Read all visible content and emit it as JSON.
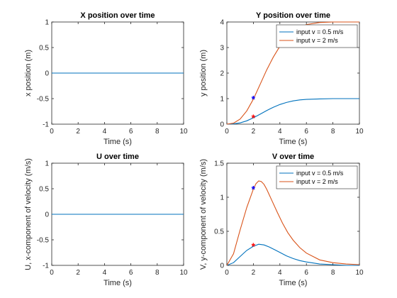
{
  "colors": {
    "series_blue": "#0072bd",
    "series_orange": "#d95319",
    "marker_blue": "#0000ff",
    "marker_red": "#ff0000",
    "axis": "#262626",
    "grid": "#dfdfdf"
  },
  "chart_data": [
    {
      "type": "line",
      "title": "X position over time",
      "xlabel": "Time (s)",
      "ylabel": "x position (m)",
      "xlim": [
        0,
        10
      ],
      "ylim": [
        -1,
        1
      ],
      "xticks": [
        "0",
        "2",
        "4",
        "6",
        "8",
        "10"
      ],
      "yticks": [
        "-1",
        "-0.5",
        "0",
        "0.5",
        "1"
      ],
      "xtick_values": [
        0,
        2,
        4,
        6,
        8,
        10
      ],
      "ytick_values": [
        -1,
        -0.5,
        0,
        0.5,
        1
      ],
      "grid": false,
      "series": [
        {
          "color": "#0072bd",
          "x": [
            0,
            10
          ],
          "y": [
            0,
            0
          ]
        }
      ]
    },
    {
      "type": "line",
      "title": "Y position over time",
      "xlabel": "Time (s)",
      "ylabel": "y position (m)",
      "xlim": [
        0,
        10
      ],
      "ylim": [
        0,
        4
      ],
      "xticks": [
        "0",
        "2",
        "4",
        "6",
        "8",
        "10"
      ],
      "yticks": [
        "0",
        "1",
        "2",
        "3",
        "4"
      ],
      "xtick_values": [
        0,
        2,
        4,
        6,
        8,
        10
      ],
      "ytick_values": [
        0,
        1,
        2,
        3,
        4
      ],
      "grid": false,
      "legend_position": "top-right",
      "series": [
        {
          "name": "input v = 0.5 m/s",
          "color": "#0072bd",
          "x": [
            0,
            0.5,
            1,
            1.5,
            2,
            2.5,
            3,
            3.5,
            4,
            4.5,
            5,
            5.5,
            6,
            7,
            8,
            9,
            10
          ],
          "y": [
            0,
            0.01,
            0.05,
            0.13,
            0.25,
            0.39,
            0.53,
            0.66,
            0.77,
            0.85,
            0.91,
            0.95,
            0.97,
            0.99,
            1.0,
            1.0,
            1.0
          ]
        },
        {
          "name": "input v = 2 m/s",
          "color": "#d95319",
          "x": [
            0,
            0.5,
            1,
            1.5,
            2,
            2.5,
            3,
            3.5,
            4,
            4.5,
            5,
            5.5,
            6,
            7,
            8,
            9,
            10
          ],
          "y": [
            0,
            0.04,
            0.2,
            0.52,
            0.98,
            1.55,
            2.12,
            2.62,
            3.05,
            3.4,
            3.64,
            3.8,
            3.9,
            3.98,
            4.0,
            4.0,
            4.0
          ]
        }
      ],
      "markers": [
        {
          "symbol": "*",
          "color": "#0000ff",
          "x": 2,
          "y": 0.98
        },
        {
          "symbol": "*",
          "color": "#ff0000",
          "x": 2,
          "y": 0.25
        }
      ]
    },
    {
      "type": "line",
      "title": "U over time",
      "xlabel": "Time (s)",
      "ylabel": "U, x-component of velocity (m/s)",
      "xlim": [
        0,
        10
      ],
      "ylim": [
        -1,
        1
      ],
      "xticks": [
        "0",
        "2",
        "4",
        "6",
        "8",
        "10"
      ],
      "yticks": [
        "-1",
        "-0.5",
        "0",
        "0.5",
        "1"
      ],
      "xtick_values": [
        0,
        2,
        4,
        6,
        8,
        10
      ],
      "ytick_values": [
        -1,
        -0.5,
        0,
        0.5,
        1
      ],
      "grid": false,
      "series": [
        {
          "color": "#0072bd",
          "x": [
            0,
            10
          ],
          "y": [
            0,
            0
          ]
        }
      ]
    },
    {
      "type": "line",
      "title": "V over time",
      "xlabel": "Time (s)",
      "ylabel": "V, y-component of velocity (m/s)",
      "xlim": [
        0,
        10
      ],
      "ylim": [
        0,
        1.5
      ],
      "xticks": [
        "0",
        "2",
        "4",
        "6",
        "8",
        "10"
      ],
      "yticks": [
        "0",
        "0.5",
        "1",
        "1.5"
      ],
      "xtick_values": [
        0,
        2,
        4,
        6,
        8,
        10
      ],
      "ytick_values": [
        0,
        0.5,
        1,
        1.5
      ],
      "grid": false,
      "legend_position": "top-right",
      "series": [
        {
          "name": "input v = 0.5 m/s",
          "color": "#0072bd",
          "x": [
            0,
            0.5,
            1,
            1.5,
            2,
            2.4,
            2.8,
            3.2,
            3.6,
            4,
            4.5,
            5,
            5.5,
            6,
            7,
            8,
            9,
            10
          ],
          "y": [
            0,
            0.04,
            0.13,
            0.22,
            0.28,
            0.31,
            0.3,
            0.27,
            0.23,
            0.19,
            0.14,
            0.1,
            0.07,
            0.05,
            0.02,
            0.01,
            0.0,
            0.0
          ]
        },
        {
          "name": "input v = 2 m/s",
          "color": "#d95319",
          "x": [
            0,
            0.5,
            1,
            1.5,
            2,
            2.2,
            2.4,
            2.6,
            2.8,
            3,
            3.4,
            3.8,
            4.2,
            4.6,
            5,
            5.5,
            6,
            7,
            8,
            9,
            10
          ],
          "y": [
            0,
            0.17,
            0.52,
            0.85,
            1.12,
            1.2,
            1.24,
            1.23,
            1.19,
            1.12,
            0.95,
            0.78,
            0.62,
            0.48,
            0.37,
            0.26,
            0.18,
            0.08,
            0.04,
            0.02,
            0.01
          ]
        }
      ],
      "markers": [
        {
          "symbol": "*",
          "color": "#0000ff",
          "x": 2,
          "y": 1.12
        },
        {
          "symbol": "*",
          "color": "#ff0000",
          "x": 2,
          "y": 0.28
        }
      ]
    }
  ]
}
